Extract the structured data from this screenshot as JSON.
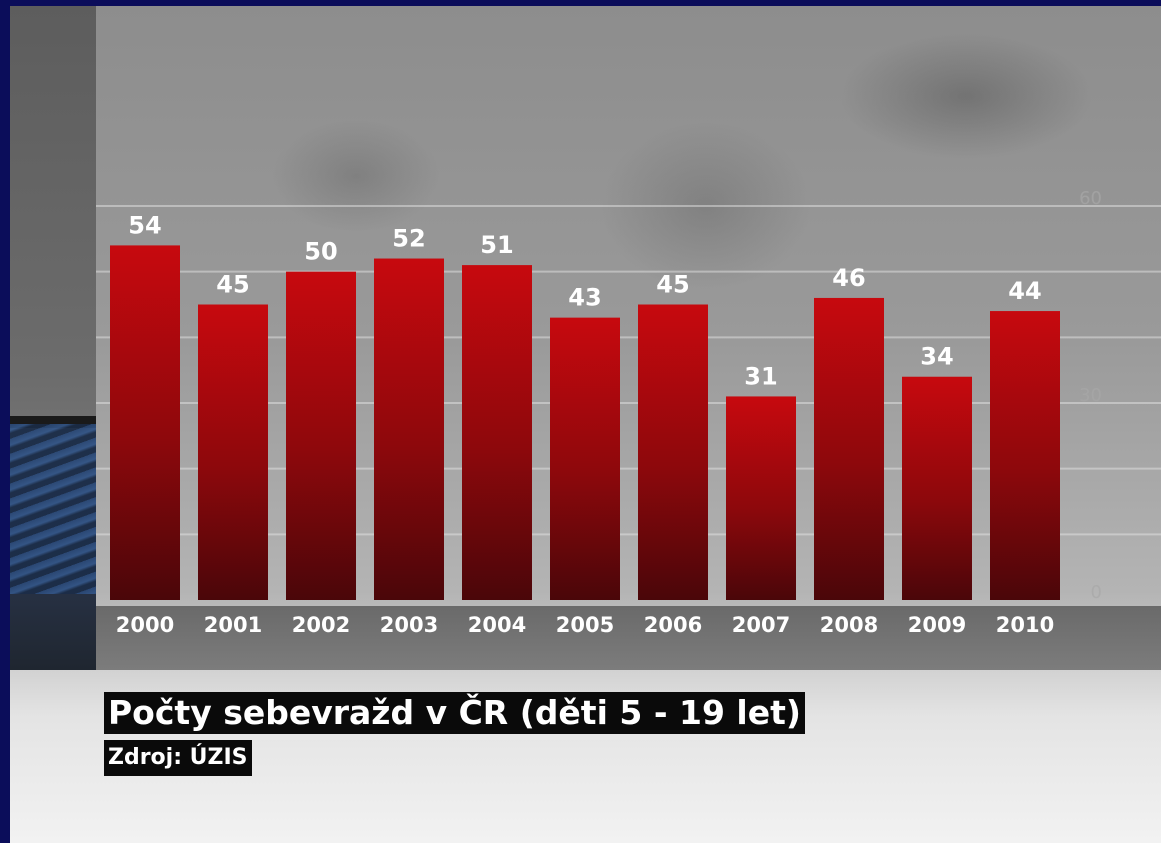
{
  "chart_data": {
    "type": "bar",
    "title": "Počty sebevražd v ČR (děti 5 - 19 let)",
    "subtitle": "Zdroj: ÚZIS",
    "categories": [
      "2000",
      "2001",
      "2002",
      "2003",
      "2004",
      "2005",
      "2006",
      "2007",
      "2008",
      "2009",
      "2010"
    ],
    "values": [
      54,
      45,
      50,
      52,
      51,
      43,
      45,
      31,
      46,
      34,
      44
    ],
    "xlabel": "",
    "ylabel": "",
    "ylim": [
      0,
      60
    ],
    "y_ticks_right": [
      "60",
      "30",
      "0"
    ],
    "grid": true,
    "colors": {
      "bar_top": "#c30a0f",
      "bar_bottom": "#4a0709",
      "label": "#ffffff"
    }
  }
}
